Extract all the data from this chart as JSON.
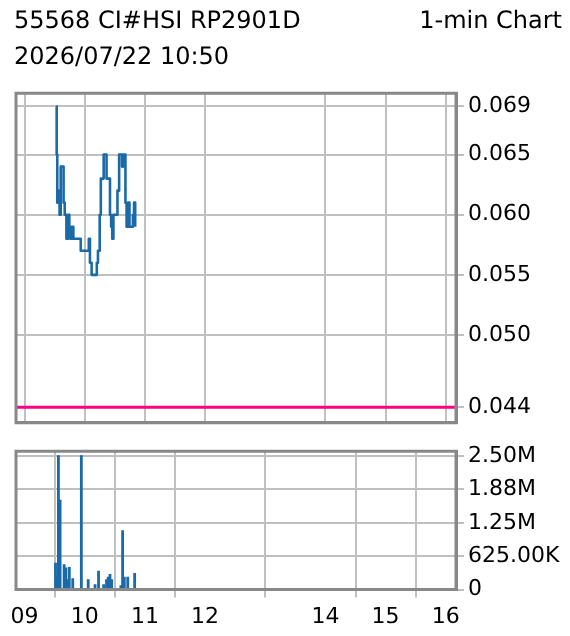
{
  "chart_data": [
    {
      "type": "step",
      "title": "55568 CI#HSI  RP2901D",
      "subtitle": "2026/07/22 10:50",
      "annotations": [
        "1-min Chart"
      ],
      "series": [
        {
          "color": "#1a6aa8",
          "x": [
            9.524,
            9.533,
            9.543,
            9.562,
            9.581,
            9.6,
            9.629,
            9.648,
            9.667,
            9.695,
            9.724,
            9.743,
            9.762,
            9.781,
            9.81,
            9.914,
            9.933,
            10.048,
            10.067,
            10.086,
            10.114,
            10.19,
            10.2,
            10.219,
            10.248,
            10.267,
            10.295,
            10.314,
            10.343,
            10.362,
            10.4,
            10.419,
            10.438,
            10.457,
            10.476,
            10.524,
            10.543,
            10.571,
            10.6,
            10.619,
            10.638,
            10.657,
            10.676,
            10.695,
            10.724,
            10.743,
            10.771,
            10.8,
            10.819,
            10.838
          ],
          "values": [
            0.069,
            0.065,
            0.061,
            0.062,
            0.06,
            0.064,
            0.064,
            0.061,
            0.06,
            0.058,
            0.06,
            0.059,
            0.058,
            0.059,
            0.058,
            0.058,
            0.057,
            0.057,
            0.058,
            0.056,
            0.055,
            0.055,
            0.056,
            0.057,
            0.06,
            0.063,
            0.063,
            0.065,
            0.065,
            0.063,
            0.063,
            0.06,
            0.059,
            0.058,
            0.06,
            0.06,
            0.062,
            0.065,
            0.065,
            0.064,
            0.065,
            0.065,
            0.061,
            0.059,
            0.061,
            0.059,
            0.059,
            0.06,
            0.061,
            0.059
          ]
        }
      ],
      "xlim": [
        8.857,
        16.17
      ],
      "xticks": [
        9,
        10,
        11,
        12,
        14,
        15,
        16
      ],
      "ylim": [
        0.0427,
        0.0701
      ],
      "yticks": [
        {
          "value": 0.044,
          "label": "0.044"
        },
        {
          "value": 0.05,
          "label": "0.050"
        },
        {
          "value": 0.055,
          "label": "0.055"
        },
        {
          "value": 0.06,
          "label": "0.060"
        },
        {
          "value": 0.065,
          "label": "0.065"
        },
        {
          "value": 0.069,
          "label": "0.069"
        }
      ],
      "ref_lines": [
        {
          "axis": "y",
          "value": 0.044,
          "color": "#ff0080"
        }
      ],
      "grid": true,
      "tick_labels": "y"
    },
    {
      "type": "bar",
      "color": "#1a6aa8",
      "x": [
        9.514,
        9.533,
        9.562,
        9.59,
        9.657,
        9.686,
        9.714,
        9.743,
        9.8,
        9.943,
        10.057,
        10.171,
        10.229,
        10.314,
        10.362,
        10.39,
        10.419,
        10.448,
        10.6,
        10.629,
        10.657,
        10.714,
        10.829
      ],
      "values": [
        490000,
        230000,
        2500000,
        1670000,
        460000,
        400000,
        180000,
        410000,
        200000,
        2500000,
        180000,
        90000,
        340000,
        90000,
        180000,
        230000,
        280000,
        180000,
        70000,
        1100000,
        230000,
        230000,
        300000
      ],
      "xlim": [
        8.857,
        16.17
      ],
      "xticks": [
        {
          "value": 9,
          "label": "09"
        },
        10,
        11,
        12,
        14,
        15,
        16
      ],
      "ylim": [
        0,
        2590000
      ],
      "yticks": [
        0,
        {
          "value": 625000,
          "label": "625.00K"
        },
        {
          "value": 1250000,
          "label": "1.25M"
        },
        {
          "value": 1875000,
          "label": "1.88M"
        },
        {
          "value": 2500000,
          "label": "2.50M"
        }
      ],
      "grid": true
    }
  ]
}
